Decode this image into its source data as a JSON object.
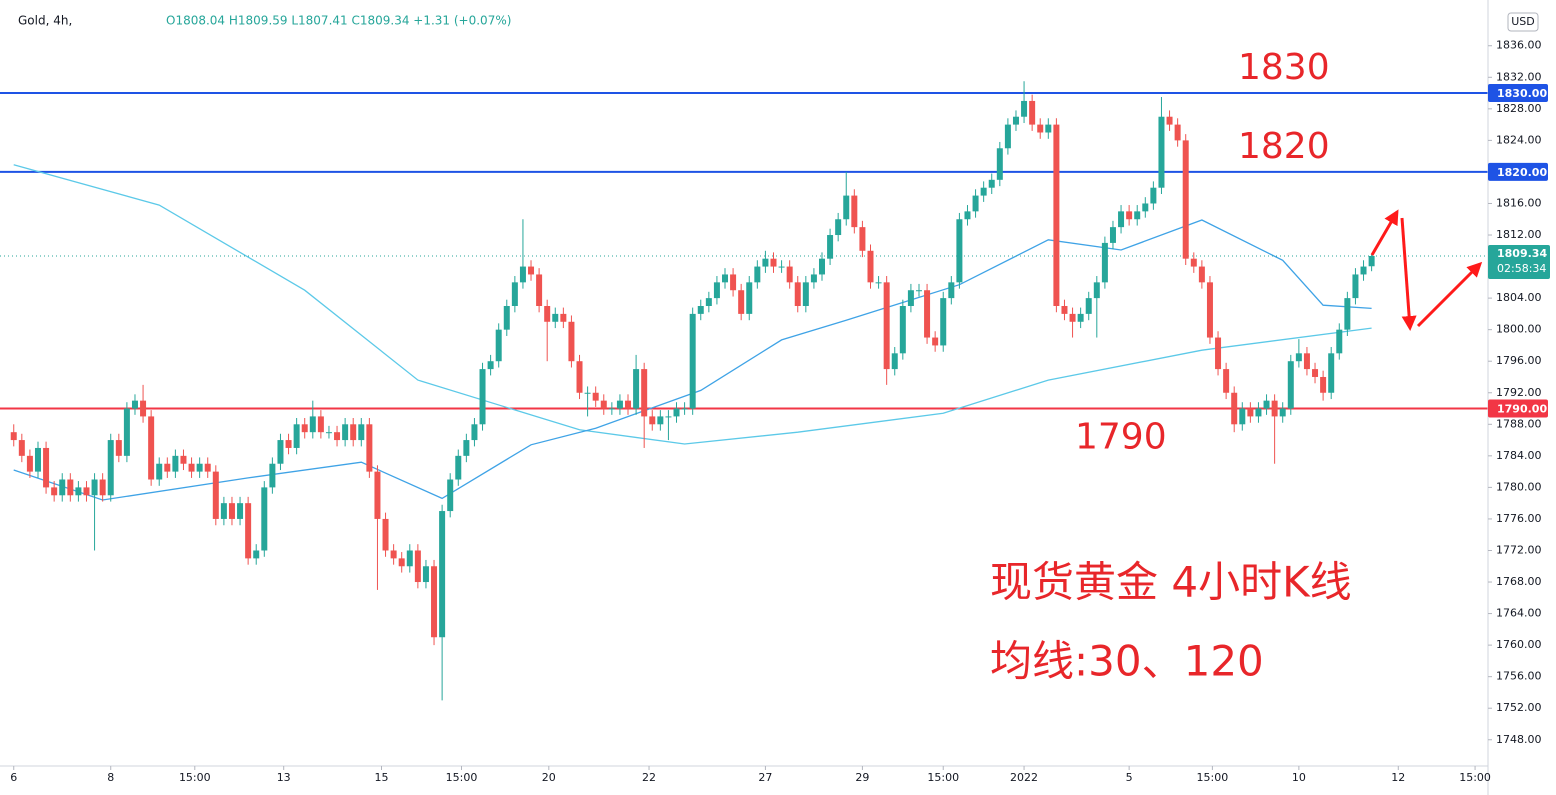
{
  "chart_data": {
    "type": "candlestick",
    "symbol": "Gold, 4h,",
    "quote": "O1808.04 H1809.59 L1807.41 C1809.34 +1.31 (+0.07%)",
    "currency": "USD",
    "up_color": "#26a69a",
    "down_color": "#ef5350",
    "xlim": [
      -1.7,
      182.4
    ],
    "ylim": [
      1744.8,
      1841.8
    ],
    "yticks": [
      {
        "value": 1748,
        "label": "1748.00"
      },
      {
        "value": 1752,
        "label": "1752.00"
      },
      {
        "value": 1756,
        "label": "1756.00"
      },
      {
        "value": 1760,
        "label": "1760.00"
      },
      {
        "value": 1764,
        "label": "1764.00"
      },
      {
        "value": 1768,
        "label": "1768.00"
      },
      {
        "value": 1772,
        "label": "1772.00"
      },
      {
        "value": 1776,
        "label": "1776.00"
      },
      {
        "value": 1780,
        "label": "1780.00"
      },
      {
        "value": 1784,
        "label": "1784.00"
      },
      {
        "value": 1788,
        "label": "1788.00"
      },
      {
        "value": 1792,
        "label": "1792.00"
      },
      {
        "value": 1796,
        "label": "1796.00"
      },
      {
        "value": 1800,
        "label": "1800.00"
      },
      {
        "value": 1804,
        "label": "1804.00"
      },
      {
        "value": 1808,
        "label": "1808.00"
      },
      {
        "value": 1812,
        "label": "1812.00"
      },
      {
        "value": 1816,
        "label": "1816.00"
      },
      {
        "value": 1824,
        "label": "1824.00"
      },
      {
        "value": 1828,
        "label": "1828.00"
      },
      {
        "value": 1832,
        "label": "1832.00"
      },
      {
        "value": 1836,
        "label": "1836.00"
      }
    ],
    "xticks": [
      {
        "value": 0,
        "label": "6"
      },
      {
        "value": 12,
        "label": "8"
      },
      {
        "value": 22.4,
        "label": "15:00"
      },
      {
        "value": 33.4,
        "label": "13"
      },
      {
        "value": 45.5,
        "label": "15"
      },
      {
        "value": 55.4,
        "label": "15:00"
      },
      {
        "value": 66.2,
        "label": "20"
      },
      {
        "value": 78.6,
        "label": "22"
      },
      {
        "value": 93,
        "label": "27"
      },
      {
        "value": 105,
        "label": "29"
      },
      {
        "value": 115,
        "label": "15:00"
      },
      {
        "value": 125,
        "label": "2022"
      },
      {
        "value": 138,
        "label": "5"
      },
      {
        "value": 148.3,
        "label": "15:00"
      },
      {
        "value": 159,
        "label": "10"
      },
      {
        "value": 171.3,
        "label": "12"
      },
      {
        "value": 180.8,
        "label": "15:00"
      }
    ],
    "levels": [
      {
        "value": 1830,
        "label": "1830.00",
        "color": "#1e53e5"
      },
      {
        "value": 1820,
        "label": "1820.00",
        "color": "#1e53e5"
      },
      {
        "value": 1790,
        "label": "1790.00",
        "color": "#f23645"
      }
    ],
    "level_annotations": [
      {
        "value": 1830,
        "text": "1830"
      },
      {
        "value": 1820,
        "text": "1820"
      },
      {
        "value": 1790,
        "text": "1790"
      }
    ],
    "last_price": 1809.34,
    "countdown": "02:58:34",
    "notes": [
      "现货黄金 4小时K线",
      "均线:30、120"
    ],
    "moving_averages": [
      {
        "color": "#5cc9e8",
        "x": [
          0,
          18,
          36,
          50,
          70,
          83,
          97,
          115,
          128,
          147,
          168
        ],
        "values": [
          1820.9,
          1815.8,
          1805,
          1793.6,
          1787.3,
          1785.5,
          1787,
          1789.4,
          1793.6,
          1797.4,
          1800.2
        ]
      },
      {
        "color": "#3fa3e6",
        "x": [
          0,
          11,
          29,
          43,
          53,
          64,
          72,
          85,
          95,
          103,
          117,
          128,
          137,
          147,
          157,
          162,
          168
        ],
        "values": [
          1782.2,
          1778.4,
          1781.2,
          1783.2,
          1778.6,
          1785.4,
          1787.5,
          1792.3,
          1798.7,
          1801.2,
          1805.7,
          1811.4,
          1810.1,
          1813.9,
          1808.8,
          1803.1,
          1802.7
        ]
      }
    ],
    "candles": [
      [
        1787,
        1788,
        1785.2,
        1786
      ],
      [
        1786,
        1786.8,
        1783.2,
        1784
      ],
      [
        1784,
        1784.8,
        1781.2,
        1782
      ],
      [
        1782,
        1785.8,
        1781.2,
        1785
      ],
      [
        1785,
        1785.8,
        1779.2,
        1780
      ],
      [
        1780,
        1780.8,
        1778.2,
        1779
      ],
      [
        1779,
        1781.8,
        1778.2,
        1781
      ],
      [
        1781,
        1781.8,
        1778.2,
        1779
      ],
      [
        1779,
        1780.8,
        1778.2,
        1780
      ],
      [
        1780,
        1780.8,
        1778.2,
        1779
      ],
      [
        1779,
        1781.8,
        1772,
        1781
      ],
      [
        1781,
        1781.8,
        1778.2,
        1779
      ],
      [
        1779,
        1786.8,
        1778.2,
        1786
      ],
      [
        1786,
        1786.8,
        1783.2,
        1784
      ],
      [
        1784,
        1790.8,
        1783.2,
        1790
      ],
      [
        1790,
        1791.8,
        1789.2,
        1791
      ],
      [
        1791,
        1793,
        1788.2,
        1789
      ],
      [
        1789,
        1789.8,
        1780.2,
        1781
      ],
      [
        1781,
        1783.8,
        1780.2,
        1783
      ],
      [
        1783,
        1783.8,
        1781.2,
        1782
      ],
      [
        1782,
        1784.8,
        1781.2,
        1784
      ],
      [
        1784,
        1784.8,
        1782.2,
        1783
      ],
      [
        1783,
        1783.8,
        1781.2,
        1782
      ],
      [
        1782,
        1783.8,
        1781.2,
        1783
      ],
      [
        1783,
        1783.8,
        1781.2,
        1782
      ],
      [
        1782,
        1782.8,
        1775.2,
        1776
      ],
      [
        1776,
        1778.8,
        1775.2,
        1778
      ],
      [
        1778,
        1778.8,
        1775.2,
        1776
      ],
      [
        1776,
        1778.8,
        1775.2,
        1778
      ],
      [
        1778,
        1778.8,
        1770.2,
        1771
      ],
      [
        1771,
        1772.8,
        1770.2,
        1772
      ],
      [
        1772,
        1780.8,
        1771.2,
        1780
      ],
      [
        1780,
        1783.8,
        1779.2,
        1783
      ],
      [
        1783,
        1786.8,
        1782.2,
        1786
      ],
      [
        1786,
        1786.8,
        1784.2,
        1785
      ],
      [
        1785,
        1788.8,
        1784.2,
        1788
      ],
      [
        1788,
        1788.8,
        1786.2,
        1787
      ],
      [
        1787,
        1791,
        1786.2,
        1789
      ],
      [
        1789,
        1789.8,
        1786.2,
        1787
      ],
      [
        1787,
        1787.8,
        1786.2,
        1787
      ],
      [
        1787,
        1787.8,
        1785.2,
        1786
      ],
      [
        1786,
        1788.8,
        1785.2,
        1788
      ],
      [
        1788,
        1788.8,
        1785.2,
        1786
      ],
      [
        1786,
        1788.8,
        1785.2,
        1788
      ],
      [
        1788,
        1788.8,
        1781.2,
        1782
      ],
      [
        1782,
        1782.8,
        1767,
        1776
      ],
      [
        1776,
        1776.8,
        1771.2,
        1772
      ],
      [
        1772,
        1772.8,
        1770.2,
        1771
      ],
      [
        1771,
        1771.8,
        1769.2,
        1770
      ],
      [
        1770,
        1772.8,
        1769.2,
        1772
      ],
      [
        1772,
        1772.8,
        1767.2,
        1768
      ],
      [
        1768,
        1770.8,
        1767.2,
        1770
      ],
      [
        1770,
        1770.8,
        1760,
        1761
      ],
      [
        1761,
        1777.8,
        1753,
        1777
      ],
      [
        1777,
        1781.8,
        1776.2,
        1781
      ],
      [
        1781,
        1784.8,
        1780.2,
        1784
      ],
      [
        1784,
        1786.8,
        1783.2,
        1786
      ],
      [
        1786,
        1788.8,
        1785.2,
        1788
      ],
      [
        1788,
        1795.8,
        1787.2,
        1795
      ],
      [
        1795,
        1796.8,
        1794.2,
        1796
      ],
      [
        1796,
        1800.8,
        1795.2,
        1800
      ],
      [
        1800,
        1803.8,
        1799.2,
        1803
      ],
      [
        1803,
        1806.8,
        1802.2,
        1806
      ],
      [
        1806,
        1814,
        1805.2,
        1808
      ],
      [
        1808,
        1808.8,
        1806.2,
        1807
      ],
      [
        1807,
        1807.8,
        1802.2,
        1803
      ],
      [
        1803,
        1803.8,
        1796,
        1801
      ],
      [
        1801,
        1802.8,
        1800.2,
        1802
      ],
      [
        1802,
        1802.8,
        1800.2,
        1801
      ],
      [
        1801,
        1801.8,
        1795.2,
        1796
      ],
      [
        1796,
        1796.8,
        1791.2,
        1792
      ],
      [
        1792,
        1792.8,
        1789,
        1792
      ],
      [
        1792,
        1792.8,
        1790.2,
        1791
      ],
      [
        1791,
        1791.8,
        1789.2,
        1790
      ],
      [
        1790,
        1790.8,
        1789.2,
        1790
      ],
      [
        1790,
        1791.8,
        1789.2,
        1791
      ],
      [
        1791,
        1791.8,
        1789.2,
        1790
      ],
      [
        1790,
        1796.8,
        1789.2,
        1795
      ],
      [
        1795,
        1795.8,
        1785,
        1789
      ],
      [
        1789,
        1789.8,
        1787.2,
        1788
      ],
      [
        1788,
        1789.8,
        1787.2,
        1789
      ],
      [
        1789,
        1789.8,
        1786,
        1789
      ],
      [
        1789,
        1790.8,
        1788.2,
        1790
      ],
      [
        1790,
        1790.8,
        1789.2,
        1790
      ],
      [
        1790,
        1802.8,
        1789.2,
        1802
      ],
      [
        1802,
        1803.8,
        1801.2,
        1803
      ],
      [
        1803,
        1804.8,
        1802.2,
        1804
      ],
      [
        1804,
        1806.8,
        1803.2,
        1806
      ],
      [
        1806,
        1807.8,
        1805.2,
        1807
      ],
      [
        1807,
        1807.8,
        1804.2,
        1805
      ],
      [
        1805,
        1805.8,
        1801.2,
        1802
      ],
      [
        1802,
        1806.8,
        1801.2,
        1806
      ],
      [
        1806,
        1808.8,
        1805.2,
        1808
      ],
      [
        1808,
        1810,
        1807.2,
        1809
      ],
      [
        1809,
        1809.8,
        1807.2,
        1808
      ],
      [
        1808,
        1808.8,
        1807.2,
        1808
      ],
      [
        1808,
        1808.8,
        1805.2,
        1806
      ],
      [
        1806,
        1806.8,
        1802.2,
        1803
      ],
      [
        1803,
        1806.8,
        1802.2,
        1806
      ],
      [
        1806,
        1807.8,
        1805.2,
        1807
      ],
      [
        1807,
        1809.8,
        1806.2,
        1809
      ],
      [
        1809,
        1812.8,
        1808.2,
        1812
      ],
      [
        1812,
        1814.8,
        1811.2,
        1814
      ],
      [
        1814,
        1820,
        1813.2,
        1817
      ],
      [
        1817,
        1817.8,
        1812.2,
        1813
      ],
      [
        1813,
        1813.8,
        1809.2,
        1810
      ],
      [
        1810,
        1810.8,
        1805.2,
        1806
      ],
      [
        1806,
        1806.8,
        1805.2,
        1806
      ],
      [
        1806,
        1806.8,
        1793,
        1795
      ],
      [
        1795,
        1797.8,
        1794.2,
        1797
      ],
      [
        1797,
        1803.8,
        1796.2,
        1803
      ],
      [
        1803,
        1805.8,
        1802.2,
        1805
      ],
      [
        1805,
        1805.8,
        1804.2,
        1805
      ],
      [
        1805,
        1805.8,
        1798.2,
        1799
      ],
      [
        1799,
        1799.8,
        1797.2,
        1798
      ],
      [
        1798,
        1804.8,
        1797.2,
        1804
      ],
      [
        1804,
        1806.8,
        1803.2,
        1806
      ],
      [
        1806,
        1814.8,
        1805.2,
        1814
      ],
      [
        1814,
        1815.8,
        1813.2,
        1815
      ],
      [
        1815,
        1817.8,
        1814.2,
        1817
      ],
      [
        1817,
        1818.8,
        1816.2,
        1818
      ],
      [
        1818,
        1819.8,
        1817.2,
        1819
      ],
      [
        1819,
        1823.8,
        1818.2,
        1823
      ],
      [
        1823,
        1826.8,
        1822.2,
        1826
      ],
      [
        1826,
        1827.8,
        1825.2,
        1827
      ],
      [
        1827,
        1831.5,
        1826.2,
        1829
      ],
      [
        1829,
        1829.8,
        1825.2,
        1826
      ],
      [
        1826,
        1826.8,
        1824.2,
        1825
      ],
      [
        1825,
        1826.8,
        1824.2,
        1826
      ],
      [
        1826,
        1826.8,
        1802.2,
        1803
      ],
      [
        1803,
        1803.8,
        1801.2,
        1802
      ],
      [
        1802,
        1802.8,
        1799,
        1801
      ],
      [
        1801,
        1802.8,
        1800.2,
        1802
      ],
      [
        1802,
        1804.8,
        1801.2,
        1804
      ],
      [
        1804,
        1806.8,
        1799,
        1806
      ],
      [
        1806,
        1811.8,
        1805.2,
        1811
      ],
      [
        1811,
        1813.8,
        1810.2,
        1813
      ],
      [
        1813,
        1815.8,
        1812.2,
        1815
      ],
      [
        1815,
        1815.8,
        1813.2,
        1814
      ],
      [
        1814,
        1815.8,
        1813.2,
        1815
      ],
      [
        1815,
        1816.8,
        1814.2,
        1816
      ],
      [
        1816,
        1818.8,
        1815.2,
        1818
      ],
      [
        1818,
        1829.5,
        1817.2,
        1827
      ],
      [
        1827,
        1827.8,
        1825.2,
        1826
      ],
      [
        1826,
        1826.8,
        1823.2,
        1824
      ],
      [
        1824,
        1824.8,
        1808.2,
        1809
      ],
      [
        1809,
        1809.8,
        1807.2,
        1808
      ],
      [
        1808,
        1808.8,
        1805.2,
        1806
      ],
      [
        1806,
        1806.8,
        1798.2,
        1799
      ],
      [
        1799,
        1799.8,
        1794.2,
        1795
      ],
      [
        1795,
        1795.8,
        1791.2,
        1792
      ],
      [
        1792,
        1792.8,
        1787,
        1788
      ],
      [
        1788,
        1790.8,
        1787.2,
        1790
      ],
      [
        1790,
        1790.8,
        1788.2,
        1789
      ],
      [
        1789,
        1790.8,
        1788.2,
        1790
      ],
      [
        1790,
        1791.8,
        1789.2,
        1791
      ],
      [
        1791,
        1791.8,
        1783,
        1789
      ],
      [
        1789,
        1790.8,
        1788.2,
        1790
      ],
      [
        1790,
        1796.8,
        1789.2,
        1796
      ],
      [
        1796,
        1798.8,
        1795.2,
        1797
      ],
      [
        1797,
        1797.8,
        1794.2,
        1795
      ],
      [
        1795,
        1795.8,
        1793.2,
        1794
      ],
      [
        1794,
        1794.8,
        1791,
        1792
      ],
      [
        1792,
        1797.8,
        1791.2,
        1797
      ],
      [
        1797,
        1800.8,
        1796.2,
        1800
      ],
      [
        1800,
        1804.8,
        1799.2,
        1804
      ],
      [
        1804,
        1807.8,
        1803.2,
        1807
      ],
      [
        1807,
        1808.8,
        1806.2,
        1808
      ],
      [
        1808.04,
        1809.59,
        1807.41,
        1809.34
      ]
    ]
  }
}
